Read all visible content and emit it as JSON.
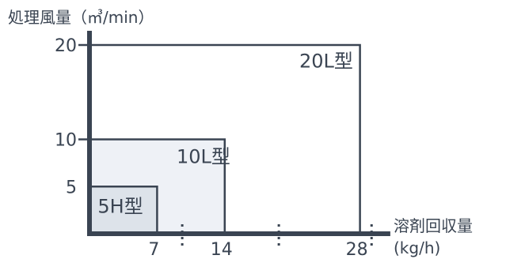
{
  "chart_data": {
    "type": "area",
    "title": "",
    "ylabel": "処理風量（㎥/min）",
    "xlabel": [
      "溶剤回収量",
      "(kg/h)"
    ],
    "xlim": [
      0,
      29.5
    ],
    "ylim": [
      0,
      21
    ],
    "xticks": [
      7,
      14,
      28
    ],
    "yticks": [
      5,
      10,
      20
    ],
    "series": [
      {
        "name": "20L型",
        "x": [
          0,
          28
        ],
        "y": [
          0,
          20
        ],
        "fill": "#ffffff"
      },
      {
        "name": "10L型",
        "x": [
          0,
          14
        ],
        "y": [
          0,
          10
        ],
        "fill": "#eef1f6"
      },
      {
        "name": "5H型",
        "x": [
          0,
          7
        ],
        "y": [
          0,
          5
        ],
        "fill": "#dde3ea"
      }
    ],
    "colors": {
      "axis": "#3a4452",
      "text": "#3a4452"
    }
  }
}
